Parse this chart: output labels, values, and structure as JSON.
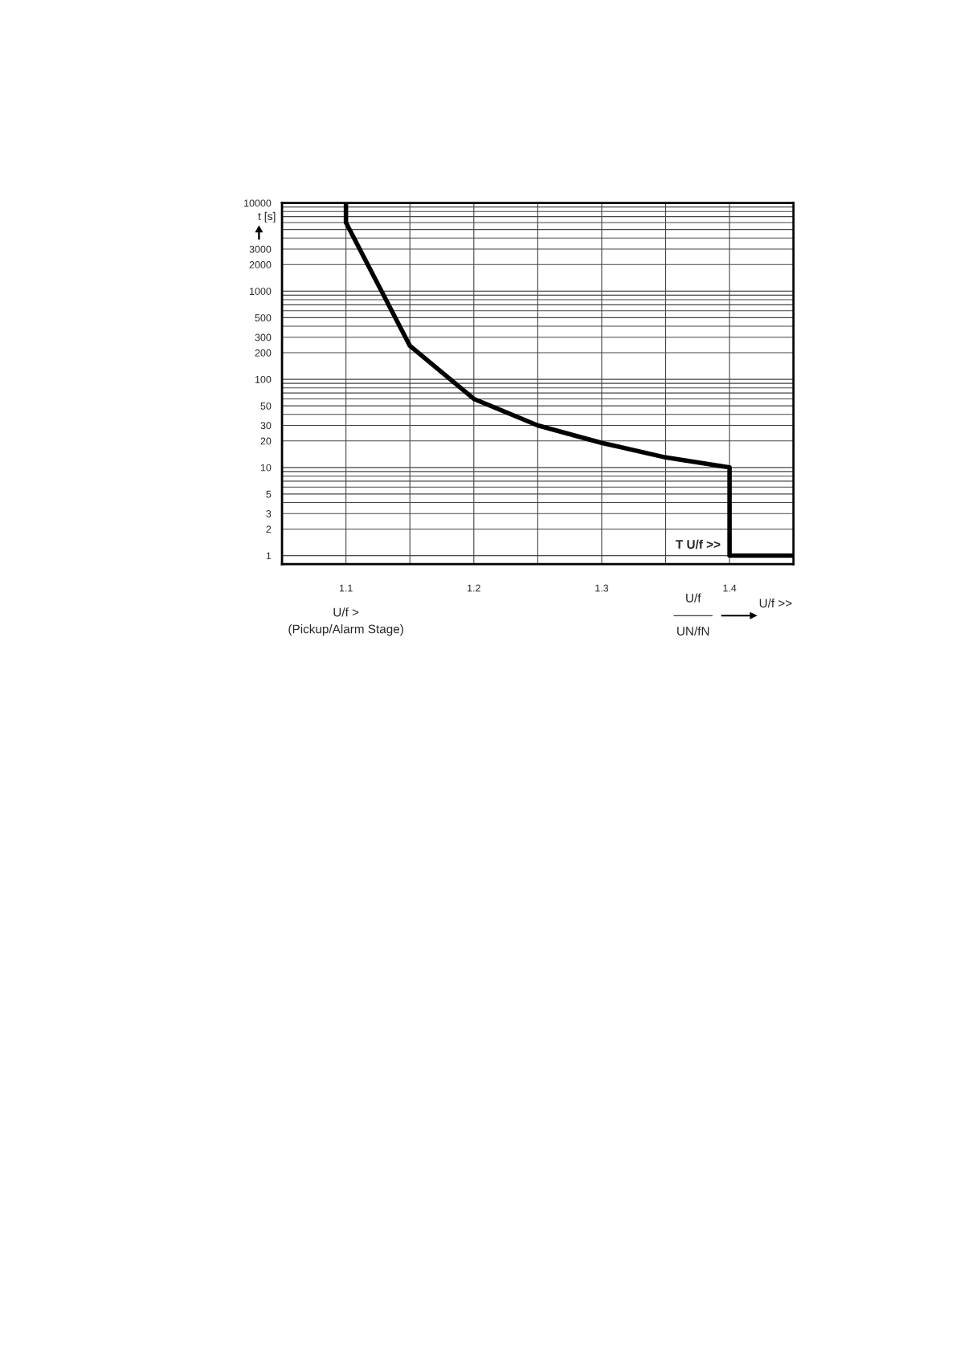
{
  "chart_data": {
    "type": "line",
    "ylabel": "t [s]",
    "xlabel": "U/f\nUN/fN",
    "series": [
      {
        "color": "#000000",
        "x": [
          1.1,
          1.1,
          1.15,
          1.2,
          1.25,
          1.3,
          1.35,
          1.4,
          1.4,
          1.45
        ],
        "values": [
          10000,
          6000,
          240,
          60,
          30,
          19,
          13,
          10,
          1,
          1
        ]
      }
    ],
    "log": "y",
    "xlim": [
      1.05,
      1.45
    ],
    "ylim": [
      0.8,
      10000
    ],
    "xticks": [
      {
        "value": 1.05,
        "label": null
      },
      1.1,
      {
        "value": 1.15,
        "label": null
      },
      1.2,
      {
        "value": 1.25,
        "label": null
      },
      1.3,
      {
        "value": 1.35,
        "label": null
      },
      1.4,
      {
        "value": 1.45,
        "label": null
      }
    ],
    "yticks": [
      1,
      2,
      3,
      {
        "value": 4,
        "label": null
      },
      5,
      {
        "value": 6,
        "label": null
      },
      {
        "value": 7,
        "label": null
      },
      {
        "value": 8,
        "label": null
      },
      {
        "value": 9,
        "label": null
      },
      10,
      20,
      30,
      {
        "value": 40,
        "label": null
      },
      50,
      {
        "value": 60,
        "label": null
      },
      {
        "value": 70,
        "label": null
      },
      {
        "value": 80,
        "label": null
      },
      {
        "value": 90,
        "label": null
      },
      100,
      200,
      300,
      {
        "value": 400,
        "label": null
      },
      500,
      {
        "value": 600,
        "label": null
      },
      {
        "value": 700,
        "label": null
      },
      {
        "value": 800,
        "label": null
      },
      {
        "value": 900,
        "label": null
      },
      1000,
      2000,
      3000,
      {
        "value": 4000,
        "label": null
      },
      {
        "value": 5000,
        "label": null
      },
      {
        "value": 6000,
        "label": null
      },
      {
        "value": 7000,
        "label": null
      },
      {
        "value": 8000,
        "label": null
      },
      {
        "value": 9000,
        "label": null
      },
      10000
    ],
    "grid": true,
    "marker": "none",
    "line_style": "solid",
    "annotations": [
      {
        "text": "T U/f >>",
        "x": 1.4,
        "y": 1
      },
      "U/f >\n(Pickup/Alarm Stage)",
      "U/f >>"
    ]
  }
}
